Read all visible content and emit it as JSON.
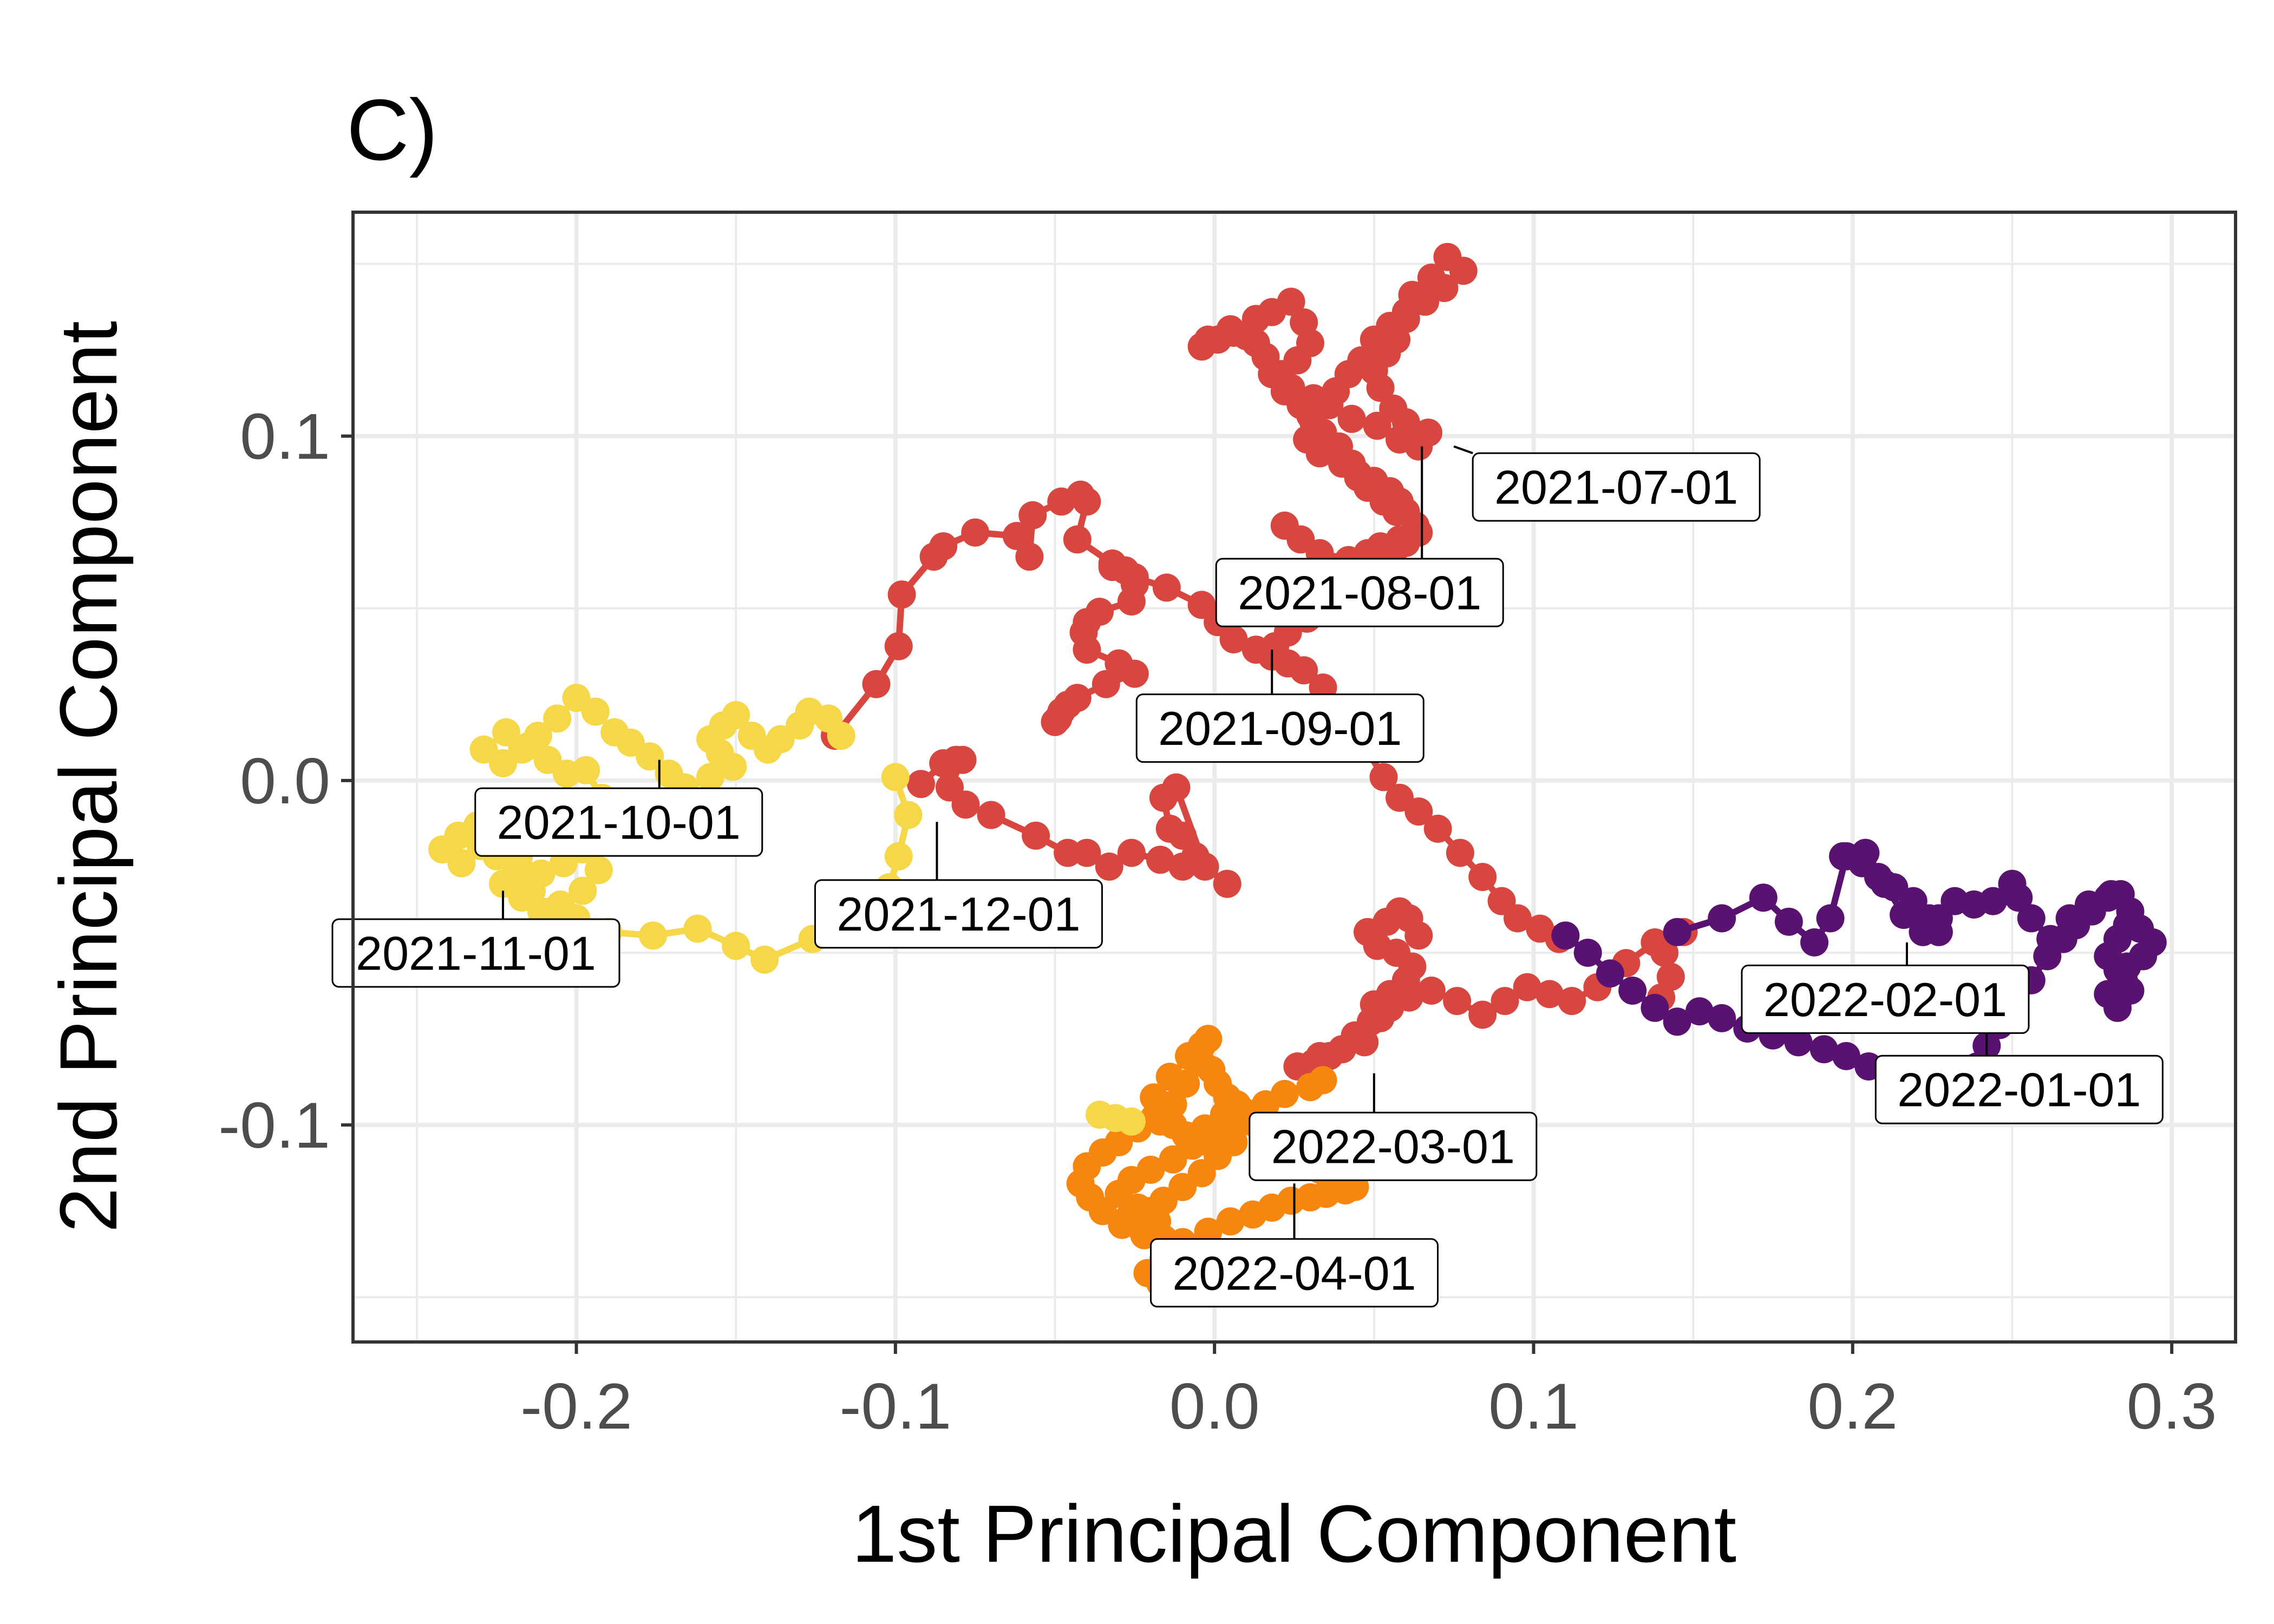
{
  "chart_data": {
    "type": "line",
    "panel_tag": "C)",
    "xlabel": "1st Principal Component",
    "ylabel": "2nd Principal Component",
    "xlim": [
      -0.27,
      0.32
    ],
    "ylim": [
      -0.163,
      0.165
    ],
    "x_ticks": [
      -0.2,
      -0.1,
      0.0,
      0.1,
      0.2,
      0.3
    ],
    "x_tick_labels": [
      "-0.2",
      "-0.1",
      "0.0",
      "0.1",
      "0.2",
      "0.3"
    ],
    "y_ticks": [
      -0.1,
      0.0,
      0.1
    ],
    "y_tick_labels": [
      "-0.1",
      "0.0",
      "0.1"
    ],
    "grid": true,
    "legend": "none",
    "colors": {
      "jul_sep_2021": "#d8473f",
      "oct_nov_2021": "#f5d747",
      "dec_2021_mar_2022": "#d8473f",
      "jan_feb_2022": "#5a1270",
      "apr_2022": "#f6860f"
    },
    "series": [
      {
        "color": "#d8473f",
        "x": [
          -0.092,
          -0.085,
          -0.081,
          -0.079,
          -0.083,
          -0.078,
          -0.07,
          -0.056,
          -0.046,
          -0.04,
          -0.033,
          -0.026,
          -0.017,
          -0.01,
          -0.006,
          -0.01,
          -0.014,
          -0.016,
          -0.012,
          -0.003,
          0.004
        ],
        "y": [
          -0.001,
          0.005,
          0.006,
          0.006,
          -0.002,
          -0.007,
          -0.01,
          -0.016,
          -0.021,
          -0.021,
          -0.025,
          -0.021,
          -0.023,
          -0.025,
          -0.022,
          -0.016,
          -0.014,
          -0.005,
          -0.002,
          -0.025,
          -0.03
        ]
      },
      {
        "color": "#d8473f",
        "x": [
          -0.119,
          -0.106,
          -0.099,
          -0.098,
          -0.088,
          -0.085,
          -0.075,
          -0.062,
          -0.058,
          -0.057,
          -0.048,
          -0.042,
          -0.04,
          -0.043,
          -0.032,
          -0.028,
          -0.025,
          -0.015,
          -0.004,
          0.001,
          0.006,
          0.013,
          0.018,
          0.023,
          0.028,
          0.034,
          0.04,
          0.047,
          0.053,
          0.058,
          0.064,
          0.07,
          0.077,
          0.084,
          0.09,
          0.095,
          0.102,
          0.108
        ],
        "y": [
          0.013,
          0.028,
          0.039,
          0.054,
          0.065,
          0.068,
          0.072,
          0.071,
          0.065,
          0.077,
          0.081,
          0.083,
          0.081,
          0.07,
          0.063,
          0.061,
          0.059,
          0.056,
          0.051,
          0.046,
          0.041,
          0.038,
          0.036,
          0.034,
          0.032,
          0.027,
          0.02,
          0.01,
          0.001,
          -0.005,
          -0.009,
          -0.014,
          -0.021,
          -0.028,
          -0.035,
          -0.04,
          -0.043,
          -0.046
        ]
      },
      {
        "color": "#d8473f",
        "x": [
          -0.032,
          -0.025,
          -0.026,
          -0.036,
          -0.04,
          -0.041,
          -0.04,
          -0.03,
          -0.025,
          -0.034,
          -0.043,
          -0.046,
          -0.048,
          -0.049,
          -0.05
        ],
        "y": [
          0.062,
          0.057,
          0.052,
          0.049,
          0.046,
          0.043,
          0.038,
          0.034,
          0.031,
          0.028,
          0.024,
          0.022,
          0.02,
          0.018,
          0.017
        ]
      },
      {
        "color": "#d8473f",
        "x": [
          0.019,
          0.023,
          0.029,
          0.036,
          0.044,
          0.05,
          0.056,
          0.06,
          0.063,
          0.057,
          0.053,
          0.048,
          0.045,
          0.043,
          0.039,
          0.034,
          0.03,
          0.027,
          0.022,
          0.018,
          0.016,
          0.013,
          0.01,
          0.006,
          0.001,
          -0.004,
          -0.002,
          0.005,
          0.013,
          0.018,
          0.024,
          0.028,
          0.03,
          0.026,
          0.021,
          0.024,
          0.031,
          0.036,
          0.043,
          0.051,
          0.058,
          0.064,
          0.067,
          0.06,
          0.056,
          0.052,
          0.05,
          0.054,
          0.057,
          0.06,
          0.062,
          0.068,
          0.073,
          0.078,
          0.072,
          0.066,
          0.06,
          0.055,
          0.05,
          0.046,
          0.042,
          0.038,
          0.034,
          0.031,
          0.029,
          0.033,
          0.04,
          0.045,
          0.05,
          0.055,
          0.058,
          0.06,
          0.064,
          0.058,
          0.052,
          0.048,
          0.042,
          0.037,
          0.033,
          0.027,
          0.022
        ],
        "y": [
          0.039,
          0.043,
          0.047,
          0.052,
          0.057,
          0.063,
          0.066,
          0.069,
          0.074,
          0.078,
          0.081,
          0.085,
          0.088,
          0.092,
          0.097,
          0.101,
          0.106,
          0.109,
          0.113,
          0.118,
          0.123,
          0.127,
          0.129,
          0.13,
          0.128,
          0.126,
          0.128,
          0.131,
          0.134,
          0.136,
          0.139,
          0.133,
          0.127,
          0.122,
          0.118,
          0.114,
          0.111,
          0.109,
          0.105,
          0.103,
          0.099,
          0.097,
          0.101,
          0.104,
          0.108,
          0.114,
          0.119,
          0.124,
          0.128,
          0.134,
          0.141,
          0.146,
          0.152,
          0.148,
          0.143,
          0.139,
          0.136,
          0.132,
          0.128,
          0.122,
          0.118,
          0.113,
          0.109,
          0.104,
          0.099,
          0.095,
          0.092,
          0.089,
          0.087,
          0.084,
          0.081,
          0.078,
          0.072,
          0.07,
          0.068,
          0.066,
          0.064,
          0.062,
          0.066,
          0.07,
          0.074
        ]
      },
      {
        "color": "#d8473f",
        "x": [
          0.14,
          0.143,
          0.141,
          0.147,
          0.138,
          0.129,
          0.12,
          0.112,
          0.105,
          0.098,
          0.091,
          0.084,
          0.076,
          0.068,
          0.061,
          0.055,
          0.05,
          0.049,
          0.044,
          0.04,
          0.036,
          0.031,
          0.026,
          0.033,
          0.04,
          0.047,
          0.052,
          0.055,
          0.06,
          0.062,
          0.057,
          0.051,
          0.048,
          0.054,
          0.058,
          0.061,
          0.064
        ],
        "y": [
          -0.063,
          -0.057,
          -0.05,
          -0.044,
          -0.047,
          -0.053,
          -0.06,
          -0.064,
          -0.062,
          -0.06,
          -0.064,
          -0.068,
          -0.064,
          -0.061,
          -0.063,
          -0.066,
          -0.065,
          -0.07,
          -0.074,
          -0.078,
          -0.08,
          -0.082,
          -0.083,
          -0.08,
          -0.078,
          -0.076,
          -0.069,
          -0.062,
          -0.058,
          -0.054,
          -0.05,
          -0.048,
          -0.044,
          -0.041,
          -0.038,
          -0.04,
          -0.045
        ]
      },
      {
        "color": "#f5d747",
        "x": [
          -0.117,
          -0.121,
          -0.127,
          -0.13,
          -0.136,
          -0.14,
          -0.145,
          -0.15,
          -0.154,
          -0.158,
          -0.155,
          -0.151,
          -0.158,
          -0.166,
          -0.171,
          -0.177,
          -0.183,
          -0.188,
          -0.194,
          -0.2,
          -0.206,
          -0.212,
          -0.217,
          -0.223,
          -0.229,
          -0.222,
          -0.215,
          -0.209,
          -0.203,
          -0.197,
          -0.192,
          -0.2,
          -0.208,
          -0.215,
          -0.22,
          -0.225,
          -0.23,
          -0.236,
          -0.242,
          -0.237,
          -0.231,
          -0.225,
          -0.218,
          -0.211,
          -0.204,
          -0.198,
          -0.193,
          -0.198,
          -0.205,
          -0.211,
          -0.217,
          -0.223,
          -0.219,
          -0.214,
          -0.208,
          -0.2,
          -0.19,
          -0.176,
          -0.162,
          -0.15,
          -0.141,
          -0.126,
          -0.112,
          -0.101
        ],
        "y": [
          0.013,
          0.018,
          0.02,
          0.016,
          0.012,
          0.009,
          0.013,
          0.019,
          0.016,
          0.012,
          0.008,
          0.004,
          0.001,
          -0.002,
          0.002,
          0.007,
          0.011,
          0.014,
          0.02,
          0.024,
          0.018,
          0.013,
          0.009,
          0.005,
          0.009,
          0.014,
          0.01,
          0.006,
          0.002,
          0.003,
          -0.005,
          -0.009,
          -0.011,
          -0.013,
          -0.016,
          -0.022,
          -0.019,
          -0.024,
          -0.02,
          -0.016,
          -0.013,
          -0.018,
          -0.022,
          -0.027,
          -0.024,
          -0.02,
          -0.026,
          -0.032,
          -0.036,
          -0.038,
          -0.034,
          -0.03,
          -0.027,
          -0.032,
          -0.038,
          -0.04,
          -0.044,
          -0.045,
          -0.043,
          -0.048,
          -0.052,
          -0.046,
          -0.04,
          -0.035
        ]
      },
      {
        "color": "#f5d747",
        "x": [
          -0.1,
          -0.096,
          -0.099,
          -0.102,
          -0.108,
          -0.112
        ],
        "y": [
          0.001,
          -0.01,
          -0.022,
          -0.031,
          -0.039,
          -0.044
        ]
      },
      {
        "color": "#5a1270",
        "x": [
          0.11,
          0.117,
          0.124,
          0.131,
          0.138,
          0.145,
          0.152,
          0.159,
          0.167,
          0.175,
          0.183,
          0.191,
          0.198,
          0.205,
          0.211,
          0.218,
          0.225,
          0.232,
          0.239,
          0.242,
          0.246,
          0.251,
          0.256,
          0.261,
          0.266,
          0.27,
          0.275,
          0.28,
          0.284,
          0.287,
          0.29,
          0.294,
          0.291,
          0.286,
          0.283,
          0.285,
          0.28,
          0.283,
          0.287,
          0.284,
          0.28,
          0.283,
          0.286
        ],
        "y": [
          -0.045,
          -0.05,
          -0.056,
          -0.061,
          -0.066,
          -0.07,
          -0.067,
          -0.069,
          -0.072,
          -0.074,
          -0.076,
          -0.078,
          -0.08,
          -0.083,
          -0.085,
          -0.087,
          -0.088,
          -0.087,
          -0.083,
          -0.077,
          -0.071,
          -0.065,
          -0.058,
          -0.051,
          -0.046,
          -0.042,
          -0.038,
          -0.034,
          -0.033,
          -0.038,
          -0.043,
          -0.047,
          -0.051,
          -0.054,
          -0.055,
          -0.058,
          -0.062,
          -0.066,
          -0.061,
          -0.056,
          -0.051,
          -0.046,
          -0.042
        ]
      },
      {
        "color": "#5a1270",
        "x": [
          0.145,
          0.159,
          0.172,
          0.18,
          0.188,
          0.193,
          0.198,
          0.204,
          0.21,
          0.216,
          0.222,
          0.227,
          0.232,
          0.238,
          0.244,
          0.25,
          0.252,
          0.256,
          0.262,
          0.268,
          0.274,
          0.281
        ],
        "y": [
          -0.044,
          -0.04,
          -0.034,
          -0.041,
          -0.047,
          -0.04,
          -0.022,
          -0.021,
          -0.03,
          -0.039,
          -0.044,
          -0.04,
          -0.035,
          -0.036,
          -0.035,
          -0.03,
          -0.034,
          -0.04,
          -0.046,
          -0.04,
          -0.036,
          -0.033
        ]
      },
      {
        "color": "#5a1270",
        "x": [
          0.197,
          0.203,
          0.208,
          0.213,
          0.219,
          0.224,
          0.227
        ],
        "y": [
          -0.022,
          -0.024,
          -0.028,
          -0.031,
          -0.035,
          -0.04,
          -0.044
        ]
      },
      {
        "color": "#f6860f",
        "x": [
          0.034,
          0.03,
          0.022,
          0.016,
          0.01,
          0.005,
          -0.002,
          -0.009,
          -0.013,
          -0.019,
          -0.024,
          -0.03,
          -0.035,
          -0.04,
          -0.042,
          -0.039,
          -0.035,
          -0.029,
          -0.022,
          -0.018,
          -0.024,
          -0.03,
          -0.026,
          -0.02,
          -0.013,
          -0.007,
          -0.003,
          0.003,
          0.007,
          0.011,
          0.006,
          0.001,
          -0.004,
          -0.01,
          -0.016,
          -0.021,
          -0.027,
          -0.023,
          -0.016,
          -0.01,
          -0.004,
          0.001,
          -0.005,
          -0.011,
          -0.017,
          -0.021,
          -0.016,
          -0.009,
          -0.002,
          0.005,
          0.012,
          0.018,
          0.024,
          0.03,
          0.035,
          0.041,
          0.044,
          0.039,
          0.033,
          0.028,
          0.024,
          0.019,
          0.015,
          0.009,
          0.004,
          0.001,
          -0.001
        ],
        "y": [
          -0.087,
          -0.089,
          -0.091,
          -0.094,
          -0.098,
          -0.102,
          -0.105,
          -0.103,
          -0.1,
          -0.098,
          -0.101,
          -0.105,
          -0.108,
          -0.112,
          -0.117,
          -0.121,
          -0.125,
          -0.129,
          -0.132,
          -0.128,
          -0.124,
          -0.12,
          -0.116,
          -0.113,
          -0.11,
          -0.106,
          -0.101,
          -0.097,
          -0.094,
          -0.099,
          -0.105,
          -0.109,
          -0.114,
          -0.118,
          -0.122,
          -0.125,
          -0.127,
          -0.13,
          -0.133,
          -0.134,
          -0.136,
          -0.139,
          -0.143,
          -0.147,
          -0.146,
          -0.143,
          -0.139,
          -0.135,
          -0.131,
          -0.128,
          -0.126,
          -0.124,
          -0.122,
          -0.121,
          -0.12,
          -0.119,
          -0.118,
          -0.116,
          -0.113,
          -0.111,
          -0.108,
          -0.104,
          -0.1,
          -0.096,
          -0.092,
          -0.088,
          -0.084
        ]
      },
      {
        "color": "#f6860f",
        "x": [
          -0.019,
          -0.014,
          -0.008,
          -0.004,
          -0.002,
          -0.004,
          -0.009,
          -0.013,
          -0.017
        ],
        "y": [
          -0.092,
          -0.086,
          -0.08,
          -0.077,
          -0.075,
          -0.082,
          -0.088,
          -0.094,
          -0.099
        ]
      },
      {
        "color": "#f5d747",
        "x": [
          -0.036,
          -0.031,
          -0.026
        ],
        "y": [
          -0.097,
          -0.098,
          -0.099
        ]
      }
    ],
    "annotations": [
      {
        "label": "2021-07-01",
        "x": 0.075,
        "y": 0.097
      },
      {
        "label": "2021-08-01",
        "x": 0.065,
        "y": 0.097
      },
      {
        "label": "2021-09-01",
        "x": 0.018,
        "y": 0.038
      },
      {
        "label": "2021-10-01",
        "x": -0.174,
        "y": 0.006
      },
      {
        "label": "2021-11-01",
        "x": -0.223,
        "y": -0.032
      },
      {
        "label": "2021-12-01",
        "x": -0.087,
        "y": -0.012
      },
      {
        "label": "2022-01-01",
        "x": 0.242,
        "y": -0.063
      },
      {
        "label": "2022-02-01",
        "x": 0.217,
        "y": -0.047
      },
      {
        "label": "2022-03-01",
        "x": 0.05,
        "y": -0.085
      },
      {
        "label": "2022-04-01",
        "x": 0.025,
        "y": -0.117
      }
    ]
  }
}
